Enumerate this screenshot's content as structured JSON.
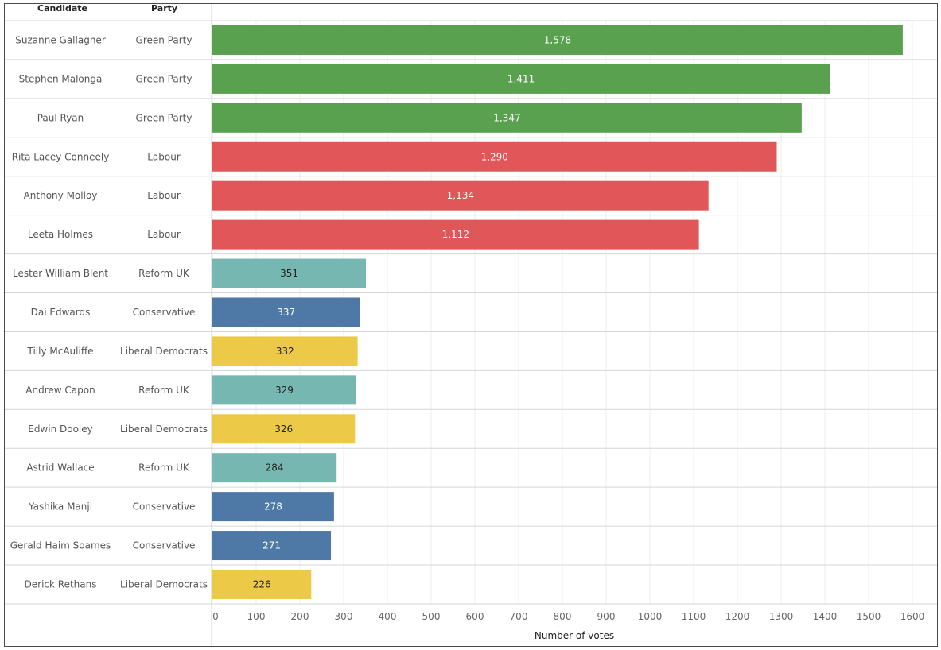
{
  "headers": {
    "candidate": "Candidate",
    "party": "Party"
  },
  "chart_data": {
    "type": "bar",
    "orientation": "horizontal",
    "xlabel": "Number of votes",
    "xlim": [
      0,
      1650
    ],
    "xticks": [
      0,
      100,
      200,
      300,
      400,
      500,
      600,
      700,
      800,
      900,
      1000,
      1100,
      1200,
      1300,
      1400,
      1500,
      1600
    ],
    "grid": true,
    "party_colors": {
      "Green Party": "#59a14f",
      "Labour": "#e15759",
      "Reform UK": "#76b7b2",
      "Conservative": "#4e79a7",
      "Liberal Democrats": "#edc948"
    },
    "label_colors": {
      "Green Party": "#ffffff",
      "Labour": "#ffffff",
      "Reform UK": "#222222",
      "Conservative": "#ffffff",
      "Liberal Democrats": "#222222"
    },
    "rows": [
      {
        "candidate": "Suzanne Gallagher",
        "party": "Green Party",
        "value": 1578,
        "label": "1,578"
      },
      {
        "candidate": "Stephen Malonga",
        "party": "Green Party",
        "value": 1411,
        "label": "1,411"
      },
      {
        "candidate": "Paul Ryan",
        "party": "Green Party",
        "value": 1347,
        "label": "1,347"
      },
      {
        "candidate": "Rita Lacey Conneely",
        "party": "Labour",
        "value": 1290,
        "label": "1,290"
      },
      {
        "candidate": "Anthony Molloy",
        "party": "Labour",
        "value": 1134,
        "label": "1,134"
      },
      {
        "candidate": "Leeta Holmes",
        "party": "Labour",
        "value": 1112,
        "label": "1,112"
      },
      {
        "candidate": "Lester William Blent",
        "party": "Reform UK",
        "value": 351,
        "label": "351"
      },
      {
        "candidate": "Dai Edwards",
        "party": "Conservative",
        "value": 337,
        "label": "337"
      },
      {
        "candidate": "Tilly McAuliffe",
        "party": "Liberal Democrats",
        "value": 332,
        "label": "332"
      },
      {
        "candidate": "Andrew Capon",
        "party": "Reform UK",
        "value": 329,
        "label": "329"
      },
      {
        "candidate": "Edwin Dooley",
        "party": "Liberal Democrats",
        "value": 326,
        "label": "326"
      },
      {
        "candidate": "Astrid Wallace",
        "party": "Reform UK",
        "value": 284,
        "label": "284"
      },
      {
        "candidate": "Yashika Manji",
        "party": "Conservative",
        "value": 278,
        "label": "278"
      },
      {
        "candidate": "Gerald Haim Soames",
        "party": "Conservative",
        "value": 271,
        "label": "271"
      },
      {
        "candidate": "Derick Rethans",
        "party": "Liberal Democrats",
        "value": 226,
        "label": "226"
      }
    ]
  }
}
